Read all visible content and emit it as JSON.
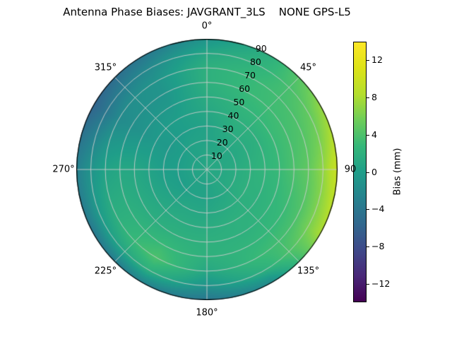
{
  "title": "Antenna Phase Biases: JAVGRANT_3LS    NONE GPS-L5",
  "chart_data": {
    "type": "heatmap",
    "projection": "polar",
    "title": "Antenna Phase Biases: JAVGRANT_3LS    NONE GPS-L5",
    "angular_ticks": [
      "0°",
      "45°",
      "90",
      "135°",
      "180°",
      "225°",
      "270°",
      "315°"
    ],
    "angular_tick_degrees": [
      0,
      45,
      90,
      135,
      180,
      225,
      270,
      315
    ],
    "radial_ticks": [
      "10",
      "20",
      "30",
      "40",
      "50",
      "60",
      "70",
      "80",
      "90"
    ],
    "radial_tick_values": [
      10,
      20,
      30,
      40,
      50,
      60,
      70,
      80,
      90
    ],
    "radial_label_angle_deg": 22.5,
    "azimuth_deg": [
      0,
      30,
      60,
      90,
      120,
      150,
      180,
      210,
      240,
      270,
      300,
      330,
      360
    ],
    "zenith_deg": [
      0,
      10,
      20,
      30,
      40,
      50,
      60,
      70,
      80,
      90
    ],
    "bias_mm": [
      [
        1.0,
        1.0,
        0.5,
        0.5,
        1.0,
        1.5,
        2.0,
        2.0,
        1.0,
        -1.0
      ],
      [
        1.0,
        1.0,
        1.0,
        1.5,
        2.0,
        2.5,
        3.0,
        3.0,
        2.5,
        2.0
      ],
      [
        1.0,
        1.0,
        1.0,
        1.5,
        2.0,
        3.0,
        3.5,
        4.0,
        5.0,
        7.0
      ],
      [
        1.0,
        1.0,
        1.5,
        2.0,
        2.5,
        3.0,
        4.0,
        5.0,
        7.0,
        10.0
      ],
      [
        1.0,
        1.0,
        1.5,
        2.0,
        2.0,
        2.5,
        3.0,
        4.0,
        6.0,
        8.0
      ],
      [
        1.0,
        1.0,
        1.0,
        1.5,
        2.0,
        2.0,
        2.5,
        3.0,
        2.0,
        -2.0
      ],
      [
        1.0,
        0.5,
        0.5,
        1.0,
        1.5,
        2.0,
        2.0,
        1.0,
        -1.0,
        -4.0
      ],
      [
        1.0,
        0.5,
        0.5,
        1.0,
        1.5,
        2.0,
        3.0,
        4.0,
        2.0,
        -3.0
      ],
      [
        1.0,
        0.5,
        0.0,
        0.5,
        1.0,
        1.5,
        2.0,
        2.0,
        0.0,
        -4.0
      ],
      [
        1.0,
        0.5,
        0.0,
        0.0,
        0.5,
        1.0,
        1.0,
        0.5,
        -1.0,
        -3.0
      ],
      [
        1.0,
        0.5,
        0.0,
        -0.5,
        -0.5,
        -1.0,
        -1.5,
        -2.0,
        -4.0,
        -6.0
      ],
      [
        1.0,
        0.5,
        0.5,
        0.0,
        0.0,
        -0.5,
        -1.0,
        -1.0,
        -2.0,
        -4.0
      ],
      [
        1.0,
        1.0,
        0.5,
        0.5,
        1.0,
        1.5,
        2.0,
        2.0,
        1.0,
        -1.0
      ]
    ],
    "vmin": -14,
    "vmax": 14,
    "colormap": "viridis",
    "colormap_stops": [
      "#440154",
      "#482878",
      "#3e4989",
      "#31688e",
      "#26828e",
      "#1f9e89",
      "#35b779",
      "#6dcd59",
      "#b4de2c",
      "#dde318",
      "#fde725"
    ],
    "grid": true,
    "grid_color": "#cccccc",
    "colorbar": {
      "label": "Bias (mm)",
      "tick_labels": [
        "12",
        "8",
        "4",
        "0",
        "−4",
        "−8",
        "−12"
      ],
      "tick_values": [
        12,
        8,
        4,
        0,
        -4,
        -8,
        -12
      ]
    }
  }
}
